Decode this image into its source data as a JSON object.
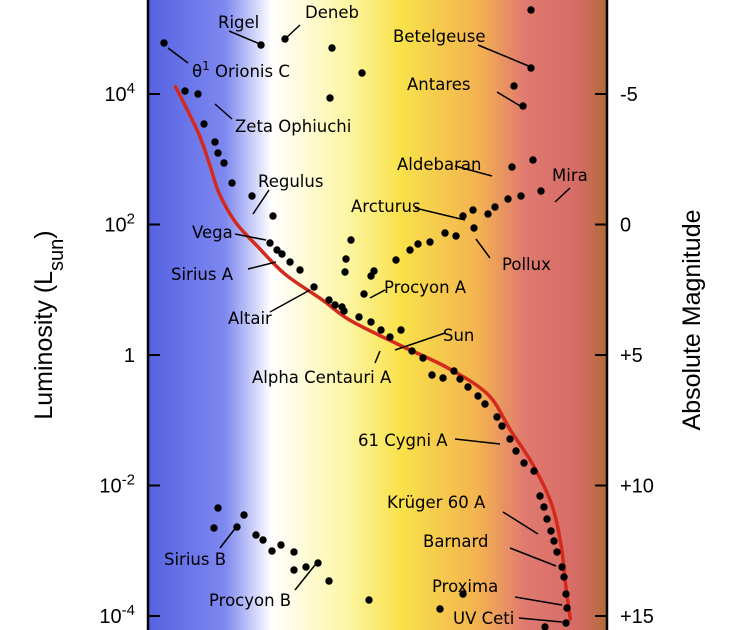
{
  "chart_data": {
    "type": "scatter",
    "title": "",
    "ylabel_left": "Luminosity (Lsun)",
    "ylabel_left_parts": {
      "main": "Luminosity (L",
      "sub": "sun",
      "close": ")"
    },
    "ylabel_right": "Absolute Magnitude",
    "y_scale": "log",
    "ylim_luminosity": [
      0.0001,
      1000000
    ],
    "left_ticks": [
      {
        "value": 10000,
        "base": "10",
        "exp": "4"
      },
      {
        "value": 100,
        "base": "10",
        "exp": "2"
      },
      {
        "value": 1,
        "base": "1",
        "exp": ""
      },
      {
        "value": 0.01,
        "base": "10",
        "exp": "-2"
      },
      {
        "value": 0.0001,
        "base": "10",
        "exp": "-4"
      }
    ],
    "right_ticks": [
      {
        "value": -5,
        "label": "-5"
      },
      {
        "value": 0,
        "label": "0"
      },
      {
        "value": 5,
        "label": "+5"
      },
      {
        "value": 10,
        "label": "+10"
      },
      {
        "value": 15,
        "label": "+15"
      }
    ],
    "background_gradient": [
      "#5561e0",
      "#7e88f0",
      "#ffffff",
      "#fdf6a8",
      "#f9e24a",
      "#f3b350",
      "#e07a70",
      "#d56b66",
      "#b06d36"
    ],
    "main_sequence_color": "#d42a1e",
    "star_dot_color": "#000000",
    "main_sequence_curve": [
      [
        0.06,
        13000
      ],
      [
        0.11,
        2500
      ],
      [
        0.135,
        800
      ],
      [
        0.155,
        300
      ],
      [
        0.19,
        110
      ],
      [
        0.24,
        45
      ],
      [
        0.3,
        17
      ],
      [
        0.38,
        7
      ],
      [
        0.44,
        3.4
      ],
      [
        0.55,
        1.4
      ],
      [
        0.65,
        0.65
      ],
      [
        0.74,
        0.25
      ],
      [
        0.79,
        0.07
      ],
      [
        0.84,
        0.02
      ],
      [
        0.88,
        0.005
      ],
      [
        0.9,
        0.0012
      ],
      [
        0.91,
        0.0003
      ],
      [
        0.92,
        9e-05
      ]
    ],
    "labeled_stars": [
      {
        "name": "Rigel",
        "sup": "",
        "x": 0.245,
        "L": 70000
      },
      {
        "name": "Deneb",
        "sup": "",
        "x": 0.285,
        "L": 80000
      },
      {
        "name": "Betelgeuse",
        "sup": "",
        "x": 0.835,
        "L": 15000
      },
      {
        "name": "θ",
        "sup": "1",
        "name2": " Orionis C",
        "x": 0.02,
        "L": 60000
      },
      {
        "name": "Antares",
        "sup": "",
        "x": 0.835,
        "L": 4000
      },
      {
        "name": "Zeta Ophiuchi",
        "sup": "",
        "x": 0.075,
        "L": 6000
      },
      {
        "name": "Aldebaran",
        "sup": "",
        "x": 0.71,
        "L": 300
      },
      {
        "name": "Mira",
        "sup": "",
        "x": 0.88,
        "L": 150
      },
      {
        "name": "Regulus",
        "sup": "",
        "x": 0.13,
        "L": 130
      },
      {
        "name": "Arcturus",
        "sup": "",
        "x": 0.67,
        "L": 100
      },
      {
        "name": "Vega",
        "sup": "",
        "x": 0.19,
        "L": 50
      },
      {
        "name": "Pollux",
        "sup": "",
        "x": 0.7,
        "L": 50
      },
      {
        "name": "Sirius A",
        "sup": "",
        "x": 0.2,
        "L": 25
      },
      {
        "name": "Procyon A",
        "sup": "",
        "x": 0.46,
        "L": 8
      },
      {
        "name": "Altair",
        "sup": "",
        "x": 0.3,
        "L": 11
      },
      {
        "name": "Sun",
        "sup": "",
        "x": 0.55,
        "L": 1
      },
      {
        "name": "Alpha Centauri A",
        "sup": "",
        "x": 0.54,
        "L": 1.5
      },
      {
        "name": "61 Cygni A",
        "sup": "",
        "x": 0.79,
        "L": 0.15
      },
      {
        "name": "Krüger 60 A",
        "sup": "",
        "x": 0.86,
        "L": 0.01
      },
      {
        "name": "Barnard",
        "sup": "",
        "x": 0.88,
        "L": 0.002
      },
      {
        "name": "Proxima",
        "sup": "",
        "x": 0.91,
        "L": 0.0002
      },
      {
        "name": "UV Ceti",
        "sup": "",
        "x": 0.92,
        "L": 0.0001
      },
      {
        "name": "Sirius B",
        "sup": "",
        "x": 0.05,
        "L": 0.002
      },
      {
        "name": "Procyon B",
        "sup": "",
        "x": 0.24,
        "L": 0.0005
      }
    ]
  }
}
